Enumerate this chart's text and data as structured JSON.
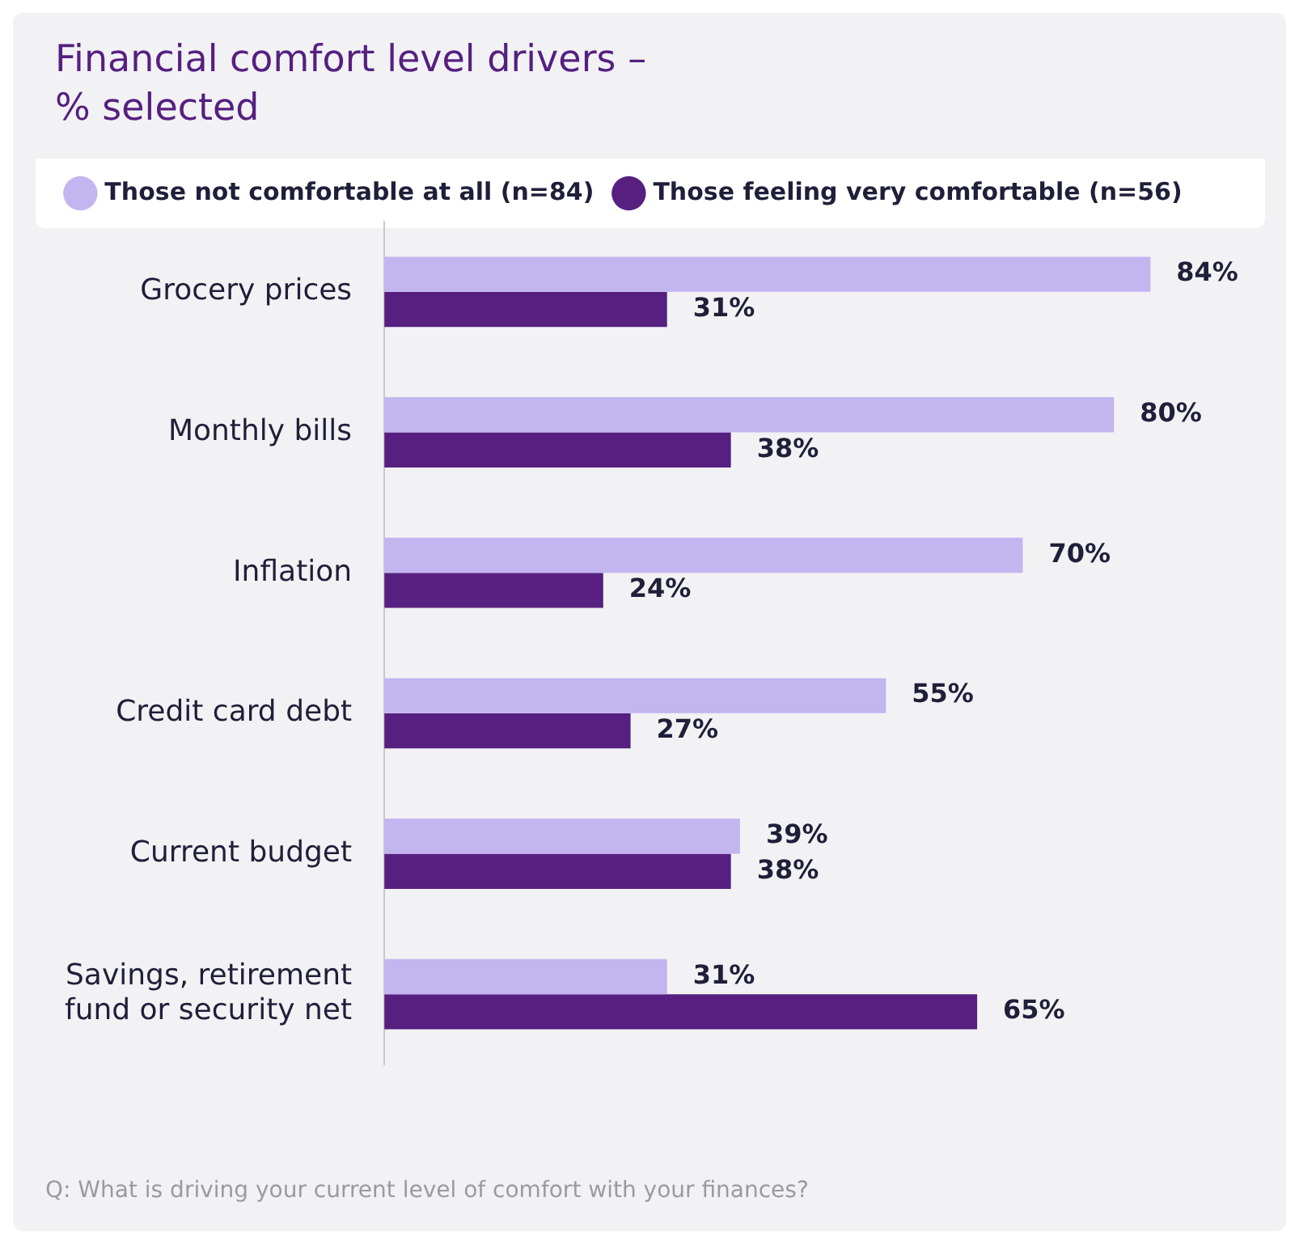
{
  "chart_data": {
    "type": "bar",
    "orientation": "horizontal",
    "title": "Financial comfort level drivers –\n% selected",
    "categories": [
      "Grocery prices",
      "Monthly bills",
      "Inflation",
      "Credit card debt",
      "Current budget",
      "Savings, retirement\nfund or security net"
    ],
    "series": [
      {
        "name": "Those not comfortable at all (n=84)",
        "color": "#c3b5f0",
        "values": [
          84,
          80,
          70,
          55,
          39,
          31
        ],
        "value_labels": [
          "84%",
          "80%",
          "70%",
          "55%",
          "39%",
          "31%"
        ]
      },
      {
        "name": "Those feeling very comfortable (n=56)",
        "color": "#561f80",
        "values": [
          31,
          38,
          24,
          27,
          38,
          65
        ],
        "value_labels": [
          "31%",
          "38%",
          "24%",
          "27%",
          "38%",
          "65%"
        ]
      }
    ],
    "legend": "top",
    "annotations": [
      "Q: What is driving your current level of comfort with your finances?"
    ]
  }
}
